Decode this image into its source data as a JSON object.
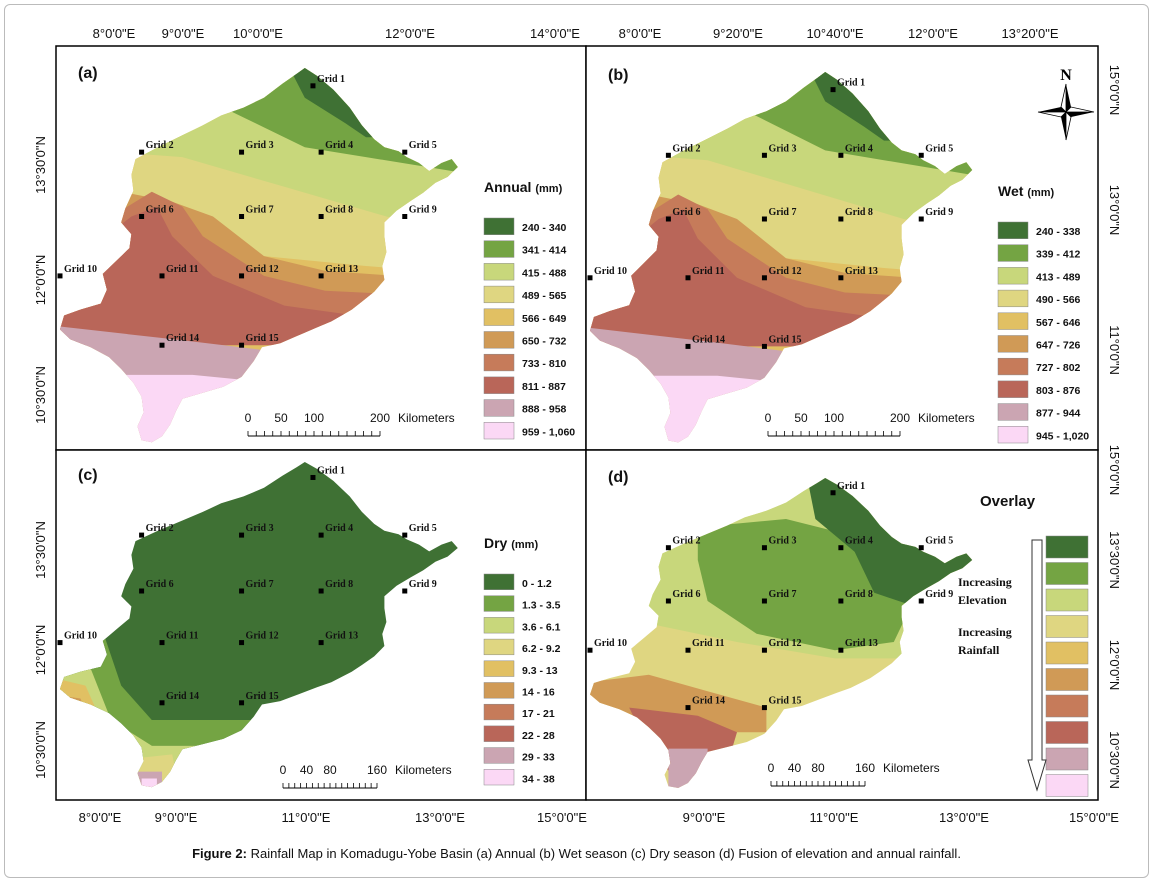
{
  "caption": {
    "label": "Figure 2:",
    "text": "Rainfall Map in Komadugu-Yobe Basin (a) Annual (b) Wet season (c) Dry season (d) Fusion of elevation and annual rainfall."
  },
  "axes": {
    "top_left": [
      "8°0'0\"E",
      "9°0'0\"E",
      "10°0'0\"E",
      "12°0'0\"E",
      "14°0'0\"E"
    ],
    "top_right": [
      "8°0'0\"E",
      "9°20'0\"E",
      "10°40'0\"E",
      "12°0'0\"E",
      "13°20'0\"E"
    ],
    "bottom_left": [
      "8°0'0\"E",
      "9°0'0\"E",
      "11°0'0\"E",
      "13°0'0\"E",
      "15°0'0\"E"
    ],
    "bottom_right": [
      "9°0'0\"E",
      "11°0'0\"E",
      "13°0'0\"E",
      "15°0'0\"E"
    ],
    "left_upper": [
      "13°30'0\"N",
      "12°0'0\"N",
      "10°30'0\"N"
    ],
    "left_lower": [
      "13°30'0\"N",
      "12°0'0\"N",
      "10°30'0\"N"
    ],
    "right_upper": [
      "15°0'0\"N",
      "13°0'0\"N",
      "11°0'0\"N",
      "15°0'0\"N"
    ],
    "right_lower": [
      "13°30'0\"N",
      "12°0'0\"N",
      "10°30'0\"N"
    ]
  },
  "grids": [
    "Grid 1",
    "Grid 2",
    "Grid 3",
    "Grid 4",
    "Grid 5",
    "Grid 6",
    "Grid 7",
    "Grid 8",
    "Grid 9",
    "Grid 10",
    "Grid 11",
    "Grid 12",
    "Grid 13",
    "Grid 14",
    "Grid 15"
  ],
  "north": "N",
  "panels": {
    "a": {
      "label": "(a)",
      "legend_title": "Annual",
      "legend_unit": "(mm)",
      "classes": [
        "240 - 340",
        "341 - 414",
        "415 - 488",
        "489 - 565",
        "566 - 649",
        "650 - 732",
        "733 - 810",
        "811 - 887",
        "888 - 958",
        "959 - 1,060"
      ],
      "scale_ticks": [
        "0",
        "50",
        "100",
        "200"
      ],
      "scale_unit": "Kilometers"
    },
    "b": {
      "label": "(b)",
      "legend_title": "Wet",
      "legend_unit": "(mm)",
      "classes": [
        "240 - 338",
        "339 - 412",
        "413 - 489",
        "490 - 566",
        "567 - 646",
        "647 - 726",
        "727 - 802",
        "803 - 876",
        "877 - 944",
        "945 - 1,020"
      ],
      "scale_ticks": [
        "0",
        "50",
        "100",
        "200"
      ],
      "scale_unit": "Kilometers"
    },
    "c": {
      "label": "(c)",
      "legend_title": "Dry",
      "legend_unit": "(mm)",
      "classes": [
        "0 - 1.2",
        "1.3 - 3.5",
        "3.6 - 6.1",
        "6.2 - 9.2",
        "9.3 - 13",
        "14 - 16",
        "17 - 21",
        "22 - 28",
        "29 - 33",
        "34 - 38"
      ],
      "scale_ticks": [
        "0",
        "40",
        "80",
        "160"
      ],
      "scale_unit": "Kilometers"
    },
    "d": {
      "label": "(d)",
      "legend_title": "Overlay",
      "arrow_text_1": "Increasing",
      "arrow_text_2": "Elevation",
      "arrow_text_3": "Increasing",
      "arrow_text_4": "Rainfall",
      "scale_ticks": [
        "0",
        "40",
        "80",
        "160"
      ],
      "scale_unit": "Kilometers"
    }
  },
  "colors": {
    "c1": "#3f7134",
    "c2": "#74a443",
    "c3": "#c8d77b",
    "c4": "#dfd681",
    "c5": "#e1c063",
    "c6": "#d09a56",
    "c7": "#c67b5a",
    "c8": "#b96659",
    "c9": "#cba5b2",
    "c10": "#fbd8f5"
  }
}
